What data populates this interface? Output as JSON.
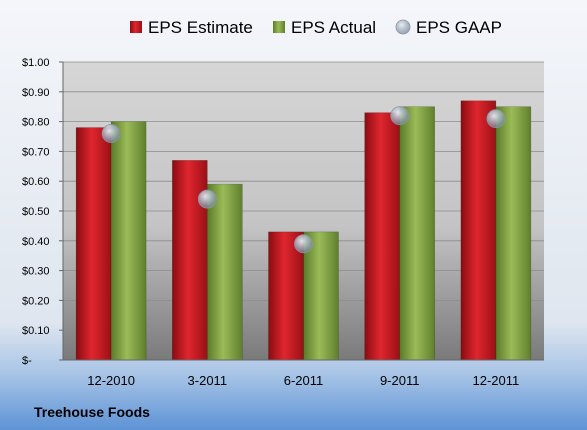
{
  "chart_data": {
    "type": "bar",
    "categories": [
      "12-2010",
      "3-2011",
      "6-2011",
      "9-2011",
      "12-2011"
    ],
    "series": [
      {
        "name": "EPS Estimate",
        "kind": "bar",
        "color": "#c0141c",
        "values": [
          0.78,
          0.67,
          0.43,
          0.83,
          0.87
        ]
      },
      {
        "name": "EPS Actual",
        "kind": "bar",
        "color": "#7a9a3c",
        "values": [
          0.8,
          0.59,
          0.43,
          0.85,
          0.85
        ]
      },
      {
        "name": "EPS GAAP",
        "kind": "marker",
        "color": "#a8b4c0",
        "values": [
          0.76,
          0.54,
          0.39,
          0.82,
          0.81
        ]
      }
    ],
    "ylim": [
      0,
      1.0
    ],
    "yticks": [
      "$-",
      "$0.10",
      "$0.20",
      "$0.30",
      "$0.40",
      "$0.50",
      "$0.60",
      "$0.70",
      "$0.80",
      "$0.90",
      "$1.00"
    ],
    "grid": true,
    "legend": "top"
  },
  "company": "Treehouse Foods"
}
